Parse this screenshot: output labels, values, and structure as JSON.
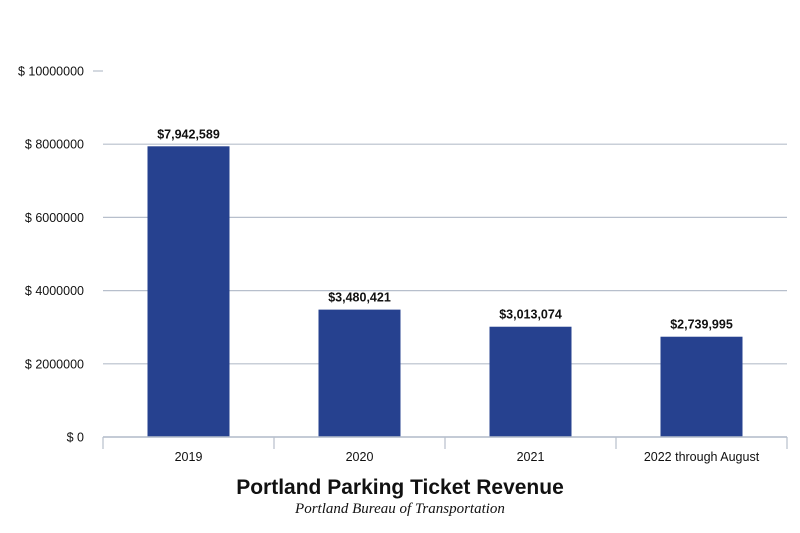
{
  "chart_data": {
    "type": "bar",
    "title": "Portland Parking Ticket Revenue",
    "subtitle": "Portland Bureau of Transportation",
    "categories": [
      "2019",
      "2020",
      "2021",
      "2022 through August"
    ],
    "values": [
      7942589,
      3480421,
      3013074,
      2739995
    ],
    "data_labels": [
      "$7,942,589",
      "$3,480,421",
      "$3,013,074",
      "$2,739,995"
    ],
    "ylim": [
      0,
      10000000
    ],
    "y_ticks": [
      0,
      2000000,
      4000000,
      6000000,
      8000000,
      10000000
    ],
    "y_tick_labels": [
      "$ 0",
      "$ 2000000",
      "$ 4000000",
      "$ 6000000",
      "$ 8000000",
      "$ 10000000"
    ],
    "grid": true,
    "bar_color": "#26418f",
    "grid_color": "#b7bfcc"
  }
}
